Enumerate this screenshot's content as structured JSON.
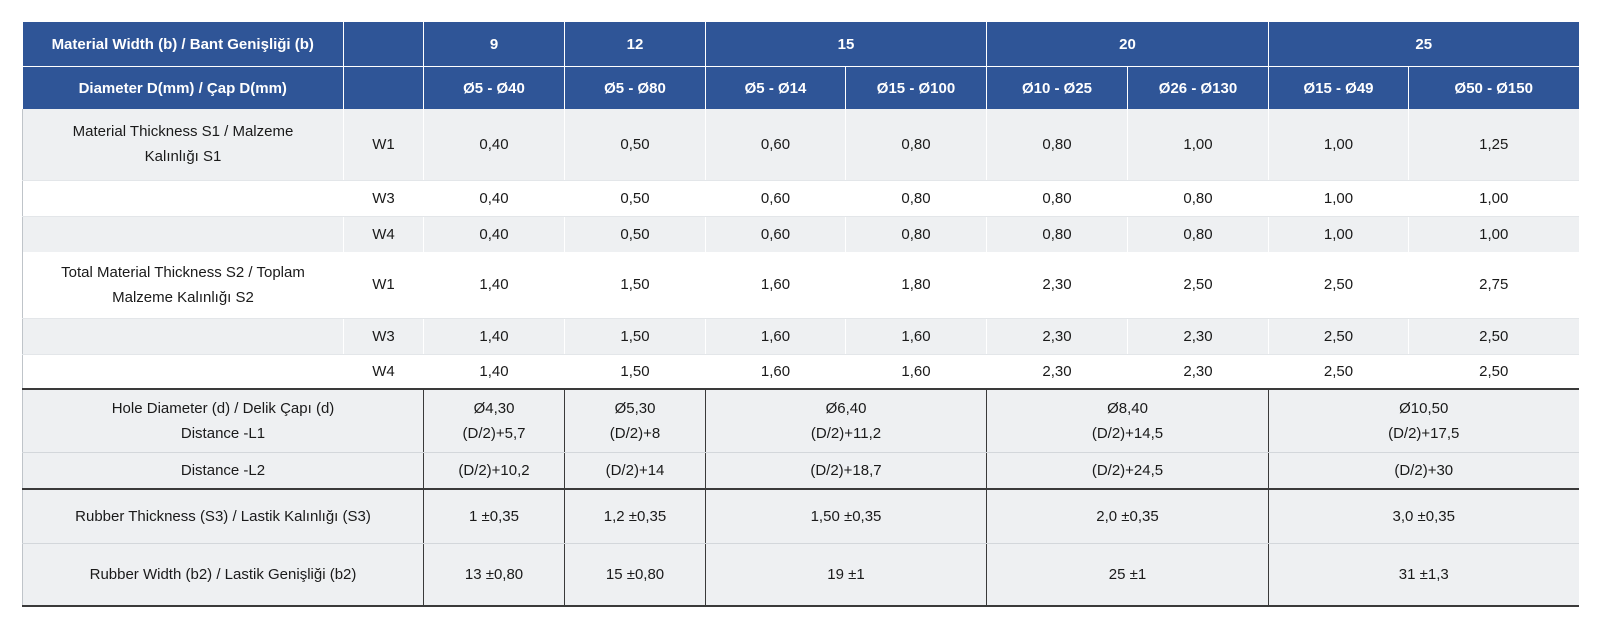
{
  "header": {
    "width_label": "Material Width (b) / Bant Genişliği (b)",
    "widths": [
      "9",
      "12",
      "15",
      "20",
      "25"
    ],
    "diameter_label": "Diameter D(mm) / Çap D(mm)",
    "diameters": [
      "Ø5 - Ø40",
      "Ø5 - Ø80",
      "Ø5 - Ø14",
      "Ø15 - Ø100",
      "Ø10 - Ø25",
      "Ø26 - Ø130",
      "Ø15 - Ø49",
      "Ø50 - Ø150"
    ]
  },
  "s1": {
    "label_line1": "Material Thickness S1 / Malzeme",
    "label_line2": "Kalınlığı S1",
    "rows": [
      {
        "w": "W1",
        "values": [
          "0,40",
          "0,50",
          "0,60",
          "0,80",
          "0,80",
          "1,00",
          "1,00",
          "1,25"
        ]
      },
      {
        "w": "W3",
        "values": [
          "0,40",
          "0,50",
          "0,60",
          "0,80",
          "0,80",
          "0,80",
          "1,00",
          "1,00"
        ]
      },
      {
        "w": "W4",
        "values": [
          "0,40",
          "0,50",
          "0,60",
          "0,80",
          "0,80",
          "0,80",
          "1,00",
          "1,00"
        ]
      }
    ]
  },
  "s2": {
    "label_line1": "Total Material Thickness S2 / Toplam",
    "label_line2": "Malzeme Kalınlığı S2",
    "rows": [
      {
        "w": "W1",
        "values": [
          "1,40",
          "1,50",
          "1,60",
          "1,80",
          "2,30",
          "2,50",
          "2,50",
          "2,75"
        ]
      },
      {
        "w": "W3",
        "values": [
          "1,40",
          "1,50",
          "1,60",
          "1,60",
          "2,30",
          "2,30",
          "2,50",
          "2,50"
        ]
      },
      {
        "w": "W4",
        "values": [
          "1,40",
          "1,50",
          "1,60",
          "1,60",
          "2,30",
          "2,30",
          "2,50",
          "2,50"
        ]
      }
    ]
  },
  "hole": {
    "label_line1": "Hole Diameter (d) / Delik Çapı (d)",
    "label_line2": "Distance -L1",
    "values": [
      {
        "d": "Ø4,30",
        "l1": "(D/2)+5,7"
      },
      {
        "d": "Ø5,30",
        "l1": "(D/2)+8"
      },
      {
        "d": "Ø6,40",
        "l1": "(D/2)+11,2"
      },
      {
        "d": "Ø8,40",
        "l1": "(D/2)+14,5"
      },
      {
        "d": "Ø10,50",
        "l1": "(D/2)+17,5"
      }
    ]
  },
  "l2": {
    "label": "Distance -L2",
    "values": [
      "(D/2)+10,2",
      "(D/2)+14",
      "(D/2)+18,7",
      "(D/2)+24,5",
      "(D/2)+30"
    ]
  },
  "rubber_thickness": {
    "label": "Rubber Thickness (S3) / Lastik Kalınlığı (S3)",
    "values": [
      "1 ±0,35",
      "1,2 ±0,35",
      "1,50 ±0,35",
      "2,0 ±0,35",
      "3,0 ±0,35"
    ]
  },
  "rubber_width": {
    "label": "Rubber Width (b2) / Lastik Genişliği (b2)",
    "values": [
      "13 ±0,80",
      "15 ±0,80",
      "19 ±1",
      "25 ±1",
      "31 ±1,3"
    ]
  },
  "colors": {
    "header_bg": "#2f5597",
    "row_shade": "#eef0f2"
  }
}
